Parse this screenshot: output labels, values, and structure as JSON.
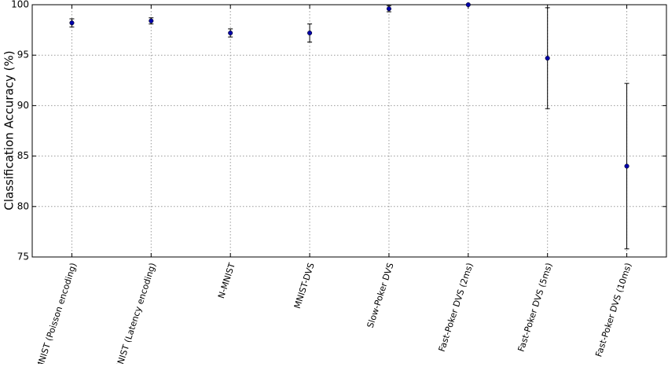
{
  "chart_data": {
    "type": "errorbar",
    "y_label": "Classification Accuracy (%)",
    "categories": [
      "MNIST (Poisson encoding)",
      "MNIST (Latency encoding)",
      "N-MNIST",
      "MNIST-DVS",
      "Slow-Poker DVS",
      "Fast-Poker DVS (2ms)",
      "Fast-Poker DVS (5ms)",
      "Fast-Poker DVS (10ms)"
    ],
    "values": [
      98.2,
      98.4,
      97.2,
      97.2,
      99.6,
      100,
      94.7,
      84.0
    ],
    "errors": [
      0.4,
      0.3,
      0.4,
      0.9,
      0.3,
      0,
      5.0,
      8.2
    ],
    "color": "#0000aa",
    "ylim": [
      75,
      100
    ],
    "yticks": [
      75,
      80,
      85,
      90,
      95,
      100
    ],
    "grid": true
  }
}
